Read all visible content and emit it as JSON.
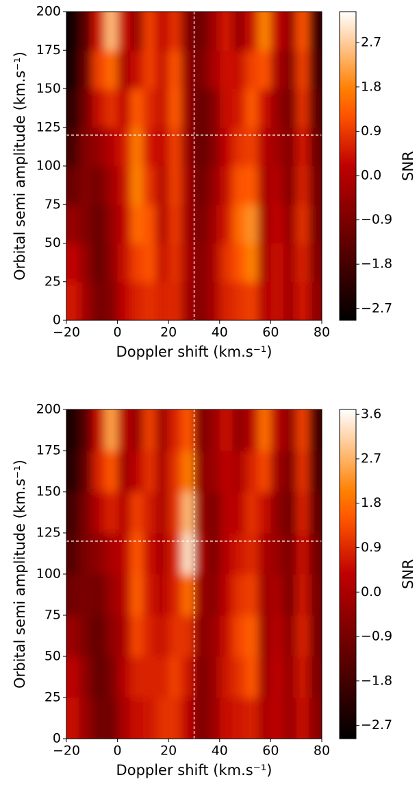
{
  "chart_data": [
    {
      "type": "heatmap",
      "colormap": "gist_heat",
      "xlabel": "Doppler shift (km.s⁻¹)",
      "ylabel": "Orbital semi amplitude (km.s⁻¹)",
      "colorbar_label": "SNR",
      "xlim": [
        -20,
        80
      ],
      "xticks": [
        {
          "value": -20,
          "label": "−20"
        },
        0,
        20,
        40,
        60,
        80
      ],
      "ylim": [
        0,
        200
      ],
      "yticks": [
        0,
        25,
        50,
        75,
        100,
        125,
        150,
        175,
        200
      ],
      "clim": [
        -2.94,
        3.33
      ],
      "cbar_ticks": [
        {
          "value": -2.7,
          "label": "−2.7"
        },
        {
          "value": -1.8,
          "label": "−1.8"
        },
        {
          "value": -0.9,
          "label": "−0.9"
        },
        {
          "value": 0,
          "label": "0.0"
        },
        0.9,
        1.8,
        2.7
      ],
      "markers": {
        "x": 30,
        "y": 120
      },
      "x": [
        -17.5,
        -12.5,
        -7.5,
        -2.5,
        2.5,
        7.5,
        12.5,
        17.5,
        22.5,
        27.5,
        32.5,
        37.5,
        42.5,
        47.5,
        52.5,
        57.5,
        62.5,
        67.5,
        72.5,
        77.5
      ],
      "y": [
        12.5,
        37.5,
        62.5,
        87.5,
        112.5,
        137.5,
        162.5,
        187.5
      ],
      "z": [
        [
          0.5,
          -0.3,
          -1.0,
          -0.8,
          0.2,
          0.6,
          0.8,
          0.6,
          0.7,
          -0.3,
          -0.8,
          -0.2,
          0.6,
          0.8,
          1.0,
          0.0,
          0.3,
          -0.3,
          0.5,
          -0.6
        ],
        [
          0.2,
          -0.5,
          -1.3,
          -0.6,
          0.3,
          1.0,
          1.2,
          0.3,
          0.8,
          -0.2,
          -0.8,
          -0.2,
          0.8,
          1.2,
          1.8,
          -0.2,
          0.3,
          -0.3,
          0.6,
          -0.8
        ],
        [
          -0.5,
          -0.8,
          -1.3,
          -0.5,
          0.2,
          1.5,
          1.2,
          0.0,
          0.9,
          -0.3,
          -1.0,
          -0.3,
          0.5,
          1.5,
          2.0,
          -0.3,
          0.2,
          -0.5,
          0.8,
          -1.0
        ],
        [
          -1.2,
          -0.8,
          -1.0,
          -0.3,
          0.3,
          1.8,
          0.8,
          0.0,
          1.0,
          -0.3,
          -1.2,
          -0.5,
          0.3,
          1.2,
          1.3,
          -0.2,
          0.0,
          -0.8,
          0.6,
          -1.0
        ],
        [
          -1.8,
          -0.8,
          -0.5,
          0.0,
          0.5,
          1.7,
          0.5,
          0.2,
          1.0,
          -0.5,
          -1.3,
          -0.8,
          0.2,
          0.8,
          1.0,
          0.0,
          -0.3,
          -0.8,
          0.5,
          -1.2
        ],
        [
          -2.2,
          -1.0,
          0.3,
          0.8,
          0.2,
          1.3,
          0.7,
          0.3,
          1.3,
          -0.5,
          -1.3,
          -0.8,
          0.3,
          0.5,
          1.3,
          0.4,
          -0.5,
          -1.0,
          0.8,
          -1.5
        ],
        [
          -2.6,
          -1.2,
          1.0,
          1.5,
          -0.2,
          0.3,
          1.0,
          0.3,
          1.2,
          -0.6,
          -1.0,
          -0.2,
          0.4,
          0.3,
          1.0,
          1.2,
          -0.2,
          -0.8,
          1.0,
          -1.8
        ],
        [
          -2.8,
          -1.5,
          0.5,
          2.5,
          0.3,
          -0.5,
          1.0,
          0.2,
          0.8,
          -0.8,
          -1.2,
          -0.3,
          0.5,
          -0.5,
          0.3,
          1.8,
          0.2,
          -0.5,
          1.2,
          -2.0
        ]
      ]
    },
    {
      "type": "heatmap",
      "colormap": "gist_heat",
      "xlabel": "Doppler shift (km.s⁻¹)",
      "ylabel": "Orbital semi amplitude (km.s⁻¹)",
      "colorbar_label": "SNR",
      "xlim": [
        -20,
        80
      ],
      "xticks": [
        {
          "value": -20,
          "label": "−20"
        },
        0,
        20,
        40,
        60,
        80
      ],
      "ylim": [
        0,
        200
      ],
      "yticks": [
        0,
        25,
        50,
        75,
        100,
        125,
        150,
        175,
        200
      ],
      "clim": [
        -2.97,
        3.7
      ],
      "cbar_ticks": [
        {
          "value": -2.7,
          "label": "−2.7"
        },
        {
          "value": -1.8,
          "label": "−1.8"
        },
        {
          "value": -0.9,
          "label": "−0.9"
        },
        {
          "value": 0,
          "label": "0.0"
        },
        0.9,
        1.8,
        2.7,
        3.6
      ],
      "markers": {
        "x": 30,
        "y": 120
      },
      "x": [
        -17.5,
        -12.5,
        -7.5,
        -2.5,
        2.5,
        7.5,
        12.5,
        17.5,
        22.5,
        27.5,
        32.5,
        37.5,
        42.5,
        47.5,
        52.5,
        57.5,
        62.5,
        67.5,
        72.5,
        77.5
      ],
      "y": [
        12.5,
        37.5,
        62.5,
        87.5,
        112.5,
        137.5,
        162.5,
        187.5
      ],
      "z": [
        [
          0.5,
          -0.3,
          -1.0,
          -1.0,
          0.0,
          0.5,
          0.6,
          1.0,
          1.0,
          0.3,
          -0.8,
          -0.3,
          0.5,
          0.6,
          0.8,
          0.0,
          0.3,
          -0.3,
          0.5,
          -0.6
        ],
        [
          0.3,
          -0.5,
          -1.3,
          -0.8,
          0.2,
          0.8,
          0.8,
          0.8,
          1.2,
          0.6,
          -0.8,
          -0.3,
          0.6,
          1.0,
          1.5,
          -0.2,
          0.3,
          -0.3,
          0.6,
          -0.8
        ],
        [
          -0.3,
          -0.8,
          -1.3,
          -0.5,
          0.0,
          1.3,
          0.8,
          0.5,
          1.0,
          1.0,
          -0.6,
          -0.3,
          0.5,
          1.3,
          1.6,
          -0.3,
          0.2,
          -0.5,
          0.8,
          -0.9
        ],
        [
          -1.0,
          -0.8,
          -1.0,
          -0.3,
          0.2,
          1.6,
          0.6,
          0.2,
          0.8,
          1.8,
          -0.3,
          -0.6,
          0.3,
          1.0,
          1.2,
          -0.2,
          0.0,
          -0.8,
          0.6,
          -0.9
        ],
        [
          -1.5,
          -0.8,
          -0.5,
          0.0,
          0.3,
          1.5,
          0.5,
          0.0,
          0.8,
          3.3,
          0.0,
          -0.8,
          0.2,
          0.6,
          0.9,
          0.0,
          -0.3,
          -0.8,
          0.5,
          -1.0
        ],
        [
          -1.8,
          -0.8,
          0.2,
          0.8,
          0.2,
          1.2,
          0.7,
          0.0,
          1.0,
          2.8,
          -0.3,
          -0.8,
          0.2,
          0.3,
          1.0,
          0.5,
          -0.5,
          -1.0,
          0.8,
          -1.3
        ],
        [
          -2.3,
          -1.2,
          0.8,
          1.5,
          -0.2,
          0.3,
          1.0,
          0.0,
          1.0,
          2.0,
          -0.5,
          -0.3,
          0.3,
          0.0,
          0.8,
          1.3,
          -0.2,
          -0.8,
          1.0,
          -1.6
        ],
        [
          -2.5,
          -1.5,
          0.5,
          2.5,
          0.2,
          -0.3,
          1.2,
          -0.2,
          0.8,
          1.5,
          -0.8,
          -0.3,
          0.5,
          -0.5,
          0.2,
          1.8,
          0.2,
          -0.5,
          1.2,
          -1.8
        ]
      ]
    }
  ]
}
